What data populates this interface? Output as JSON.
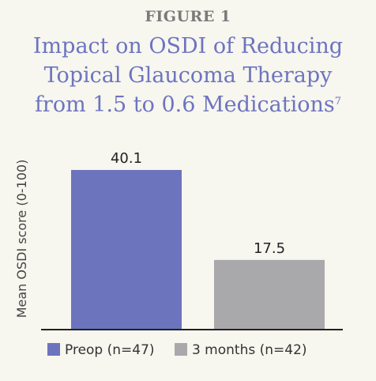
{
  "figure_label": "FIGURE 1",
  "title_lines": [
    "Impact on OSDI of Reducing",
    "Topical Glaucoma Therapy",
    "from 1.5 to 0.6 Medications"
  ],
  "title_superscript": "7",
  "colors": {
    "title": "#6d74bf",
    "preop": "#6b74bd",
    "three_months": "#a9a9ab",
    "axis": "#222222"
  },
  "chart_data": {
    "type": "bar",
    "title": "Impact on OSDI of Reducing Topical Glaucoma Therapy from 1.5 to 0.6 Medications",
    "xlabel": "",
    "ylabel": "Mean OSDI score (0-100)",
    "ylim": [
      0,
      45
    ],
    "grid": false,
    "legend_position": "bottom",
    "series": [
      {
        "name": "Preop (n=47)",
        "value": 40.1,
        "value_label": "40.1",
        "color": "#6b74bd"
      },
      {
        "name": "3 months (n=42)",
        "value": 17.5,
        "value_label": "17.5",
        "color": "#a9a9ab"
      }
    ]
  }
}
